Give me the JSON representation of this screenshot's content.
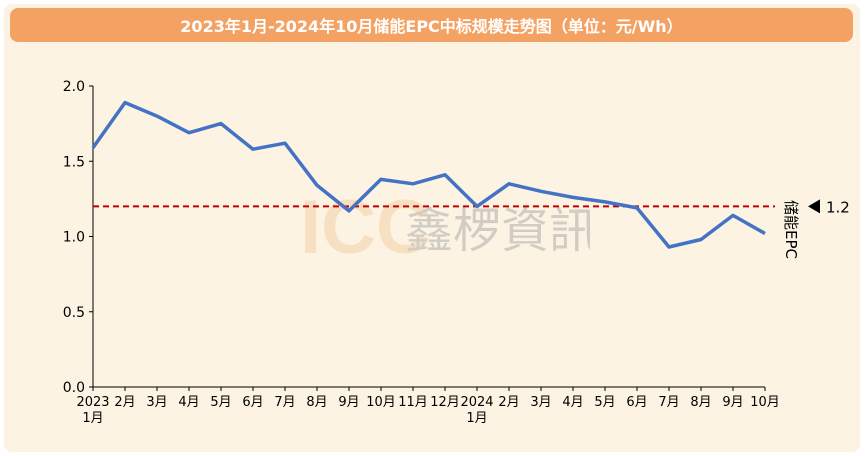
{
  "title": "2023年1月-2024年10月储能EPC中标规模走势图（单位：元/Wh）",
  "watermark": {
    "text": "ICC鑫椤资讯",
    "latin": "ICC",
    "cjk": "鑫椤資訊"
  },
  "colors": {
    "title_bg": "#f4a263",
    "panel_bg": "#fcf3e3",
    "line": "#4472c4",
    "ref_line": "#c00000",
    "watermark_latin": "#f1c89a",
    "watermark_cjk": "#a0a0a0"
  },
  "chart_data": {
    "type": "line",
    "title": "2023年1月-2024年10月储能EPC中标规模走势图（单位：元/Wh）",
    "xlabel": "",
    "ylabel": "",
    "categories": [
      [
        "2023",
        "1月"
      ],
      [
        "2月"
      ],
      [
        "3月"
      ],
      [
        "4月"
      ],
      [
        "5月"
      ],
      [
        "6月"
      ],
      [
        "7月"
      ],
      [
        "8月"
      ],
      [
        "9月"
      ],
      [
        "10月"
      ],
      [
        "11月"
      ],
      [
        "12月"
      ],
      [
        "2024",
        "1月"
      ],
      [
        "2月"
      ],
      [
        "3月"
      ],
      [
        "4月"
      ],
      [
        "5月"
      ],
      [
        "6月"
      ],
      [
        "7月"
      ],
      [
        "8月"
      ],
      [
        "9月"
      ],
      [
        "10月"
      ]
    ],
    "series": [
      {
        "name": "储能EPC",
        "values": [
          1.59,
          1.89,
          1.8,
          1.69,
          1.75,
          1.58,
          1.62,
          1.34,
          1.17,
          1.38,
          1.35,
          1.41,
          1.2,
          1.35,
          1.3,
          1.26,
          1.23,
          1.19,
          0.93,
          0.98,
          1.14,
          1.02
        ]
      }
    ],
    "ylim": [
      0,
      2.0
    ],
    "yticks": [
      "0.0",
      "0.5",
      "1.0",
      "1.5",
      "2.0"
    ],
    "reference_line": {
      "value": 1.2,
      "label": "1.2",
      "style": "dashed"
    },
    "grid": false,
    "legend": "right"
  }
}
